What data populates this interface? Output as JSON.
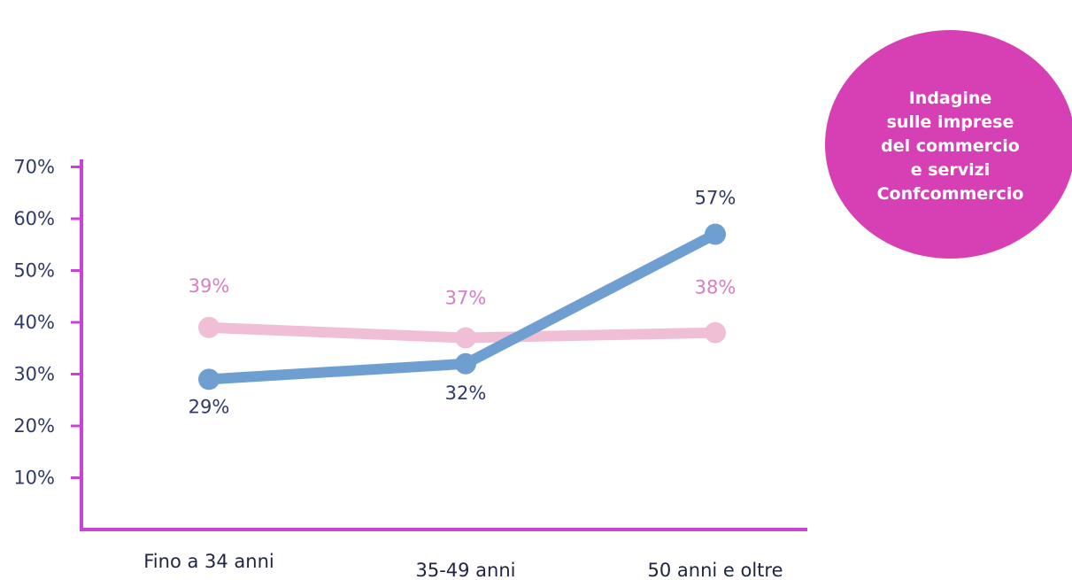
{
  "badge": {
    "text": "Indagine\nsulle imprese\ndel commercio\ne servizi\nConfcommercio",
    "color": "#d640b4"
  },
  "chart_data": {
    "type": "line",
    "categories": [
      "Fino a 34 anni",
      "35-49 anni",
      "50 anni e oltre"
    ],
    "y_ticks": [
      "10%",
      "20%",
      "30%",
      "40%",
      "50%",
      "60%",
      "70%"
    ],
    "ylim": [
      0,
      70
    ],
    "axis_color": "#c944d6",
    "series": [
      {
        "color": "#f0bfd6",
        "label_color": "#d77fc0",
        "values": [
          39,
          37,
          38
        ],
        "labels": [
          "39%",
          "37%",
          "38%"
        ]
      },
      {
        "color": "#6f9fd0",
        "label_color": "#2f3a66",
        "values": [
          29,
          32,
          57
        ],
        "labels": [
          "29%",
          "32%",
          "57%"
        ]
      }
    ]
  }
}
